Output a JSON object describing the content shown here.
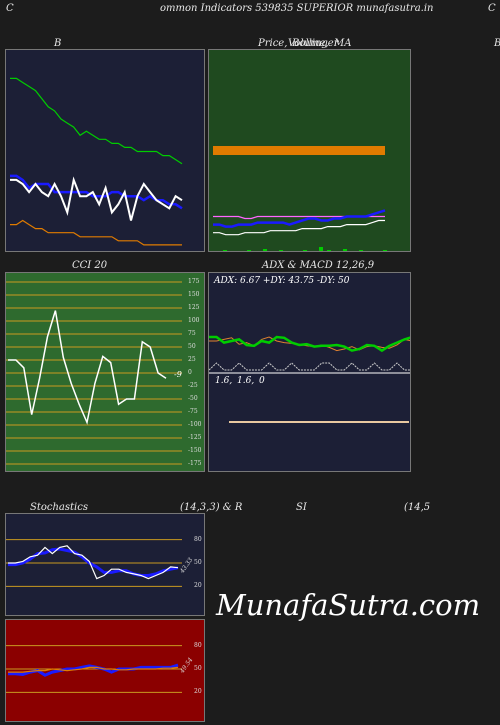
{
  "header": {
    "left_letter": "C",
    "title": "ommon  Indicators 539835 SUPERIOR munafasutra.in",
    "right_letter": "C"
  },
  "panels": {
    "b": {
      "title": "B"
    },
    "price": {
      "title_a": "Price,",
      "title_b": "Volume,",
      "title_c": "Bollinger",
      "title_d": "MA",
      "right_cut": "B"
    },
    "cci": {
      "title": "CCI 20",
      "value_label": "-9",
      "ticks": [
        "175",
        "150",
        "125",
        "100",
        "75",
        "50",
        "25",
        "0",
        "-25",
        "-50",
        "-75",
        "-100",
        "-125",
        "-150",
        "-175"
      ]
    },
    "adx": {
      "title": "ADX  & MACD 12,26,9",
      "info": "ADX: 6.67 +DY: 43.75 -DY: 50",
      "macd_label_1": "1.6,",
      "macd_label_2": "1.6,",
      "macd_label_3": "0"
    },
    "stoch": {
      "title_a": "Stochastics",
      "title_b": "(14,3,3) & R",
      "value_label": "43.33",
      "ticks": [
        "80",
        "50",
        "20"
      ]
    },
    "rsi": {
      "title_a": "SI",
      "title_b": "(14,5",
      "value_label": "49.54",
      "ticks": [
        "80",
        "50",
        "20"
      ]
    }
  },
  "watermark": "MunafaSutra.com",
  "colors": {
    "navy_bg": "#1c1f36",
    "green_bg": "#1f4a1f",
    "cci_bg": "#2e6a2e",
    "red_bg": "#8b0000",
    "blue": "#1a1aff",
    "green_line": "#00cc00",
    "orange": "#e07b00",
    "white": "#ffffff"
  },
  "chart_data": [
    {
      "type": "line",
      "panel": "B",
      "series": [
        {
          "values": [
            86,
            86,
            84,
            82,
            80,
            76,
            72,
            70,
            66,
            64,
            62,
            58,
            60,
            58,
            56,
            56,
            54,
            54,
            52,
            52,
            50,
            50,
            50,
            50,
            48,
            48,
            46,
            44
          ]
        },
        {
          "values": [
            38,
            38,
            36,
            32,
            34,
            34,
            34,
            30,
            30,
            30,
            30,
            30,
            30,
            28,
            28,
            28,
            30,
            30,
            28,
            28,
            28,
            26,
            28,
            26,
            26,
            24,
            24,
            22
          ]
        },
        {
          "values": [
            36,
            36,
            34,
            30,
            34,
            30,
            28,
            34,
            28,
            20,
            36,
            28,
            28,
            30,
            24,
            32,
            20,
            24,
            30,
            16,
            28,
            34,
            30,
            26,
            24,
            22,
            28,
            26
          ]
        },
        {
          "values": [
            14,
            14,
            16,
            14,
            12,
            12,
            10,
            10,
            10,
            10,
            10,
            8,
            8,
            8,
            8,
            8,
            8,
            6,
            6,
            6,
            6,
            4,
            4,
            4,
            4,
            4,
            4,
            4
          ]
        }
      ]
    },
    {
      "type": "line",
      "panel": "Price",
      "series": [
        {
          "values": [
            10,
            10,
            9,
            9,
            9,
            10,
            10,
            10,
            10,
            11,
            11,
            11,
            11,
            11,
            12,
            12,
            12,
            12,
            13,
            13,
            13,
            14,
            14,
            14,
            14,
            15,
            16,
            16
          ]
        },
        {
          "values": [
            14,
            14,
            13,
            13,
            14,
            14,
            14,
            15,
            15,
            15,
            15,
            15,
            14,
            15,
            16,
            17,
            17,
            16,
            16,
            17,
            17,
            18,
            18,
            18,
            18,
            19,
            20,
            21
          ]
        },
        {
          "values": [
            18,
            18,
            18,
            18,
            18,
            17,
            17,
            18,
            18,
            18,
            18,
            18,
            18,
            18,
            18,
            18,
            18,
            18,
            18,
            18,
            18,
            18,
            18,
            18,
            18,
            18,
            18,
            18
          ]
        }
      ]
    },
    {
      "type": "line",
      "panel": "CCI",
      "series": [
        {
          "values": [
            25,
            25,
            10,
            -80,
            -10,
            70,
            120,
            30,
            -20,
            -60,
            -95,
            -20,
            32,
            20,
            -60,
            -50,
            -50,
            60,
            50,
            0,
            -10
          ]
        }
      ]
    },
    {
      "type": "line",
      "panel": "ADX",
      "series": [
        {
          "values": [
            45,
            45,
            38,
            40,
            42,
            35,
            34,
            40,
            38,
            45,
            44,
            38,
            35,
            36,
            33,
            34,
            34,
            35,
            33,
            28,
            30,
            35,
            34,
            28,
            34,
            38,
            42,
            45
          ]
        },
        {
          "values": [
            40,
            40,
            42,
            44,
            36,
            38,
            34,
            42,
            45,
            40,
            38,
            37,
            36,
            34,
            33,
            35,
            32,
            28,
            30,
            33,
            29,
            33,
            34,
            32,
            31,
            35,
            42,
            40
          ]
        }
      ]
    },
    {
      "type": "line",
      "panel": "Stochastics",
      "series": [
        {
          "values": [
            50,
            50,
            52,
            58,
            60,
            70,
            62,
            70,
            72,
            62,
            60,
            52,
            30,
            34,
            42,
            42,
            38,
            36,
            34,
            30,
            34,
            38,
            45,
            44
          ]
        },
        {
          "values": [
            48,
            48,
            50,
            55,
            62,
            63,
            67,
            68,
            66,
            64,
            58,
            50,
            45,
            38,
            38,
            40,
            40,
            36,
            34,
            34,
            36,
            40,
            42,
            44
          ]
        }
      ]
    },
    {
      "type": "line",
      "panel": "RSI",
      "series": [
        {
          "values": [
            46,
            46,
            46,
            47,
            48,
            48,
            50,
            49,
            48,
            49,
            50,
            52,
            52,
            50,
            50,
            49,
            49,
            50,
            50,
            50,
            50,
            51,
            51,
            52
          ]
        },
        {
          "values": [
            44,
            44,
            43,
            46,
            48,
            42,
            46,
            48,
            50,
            50,
            52,
            54,
            52,
            50,
            46,
            50,
            50,
            50,
            52,
            52,
            52,
            52,
            52,
            55
          ]
        }
      ]
    }
  ]
}
